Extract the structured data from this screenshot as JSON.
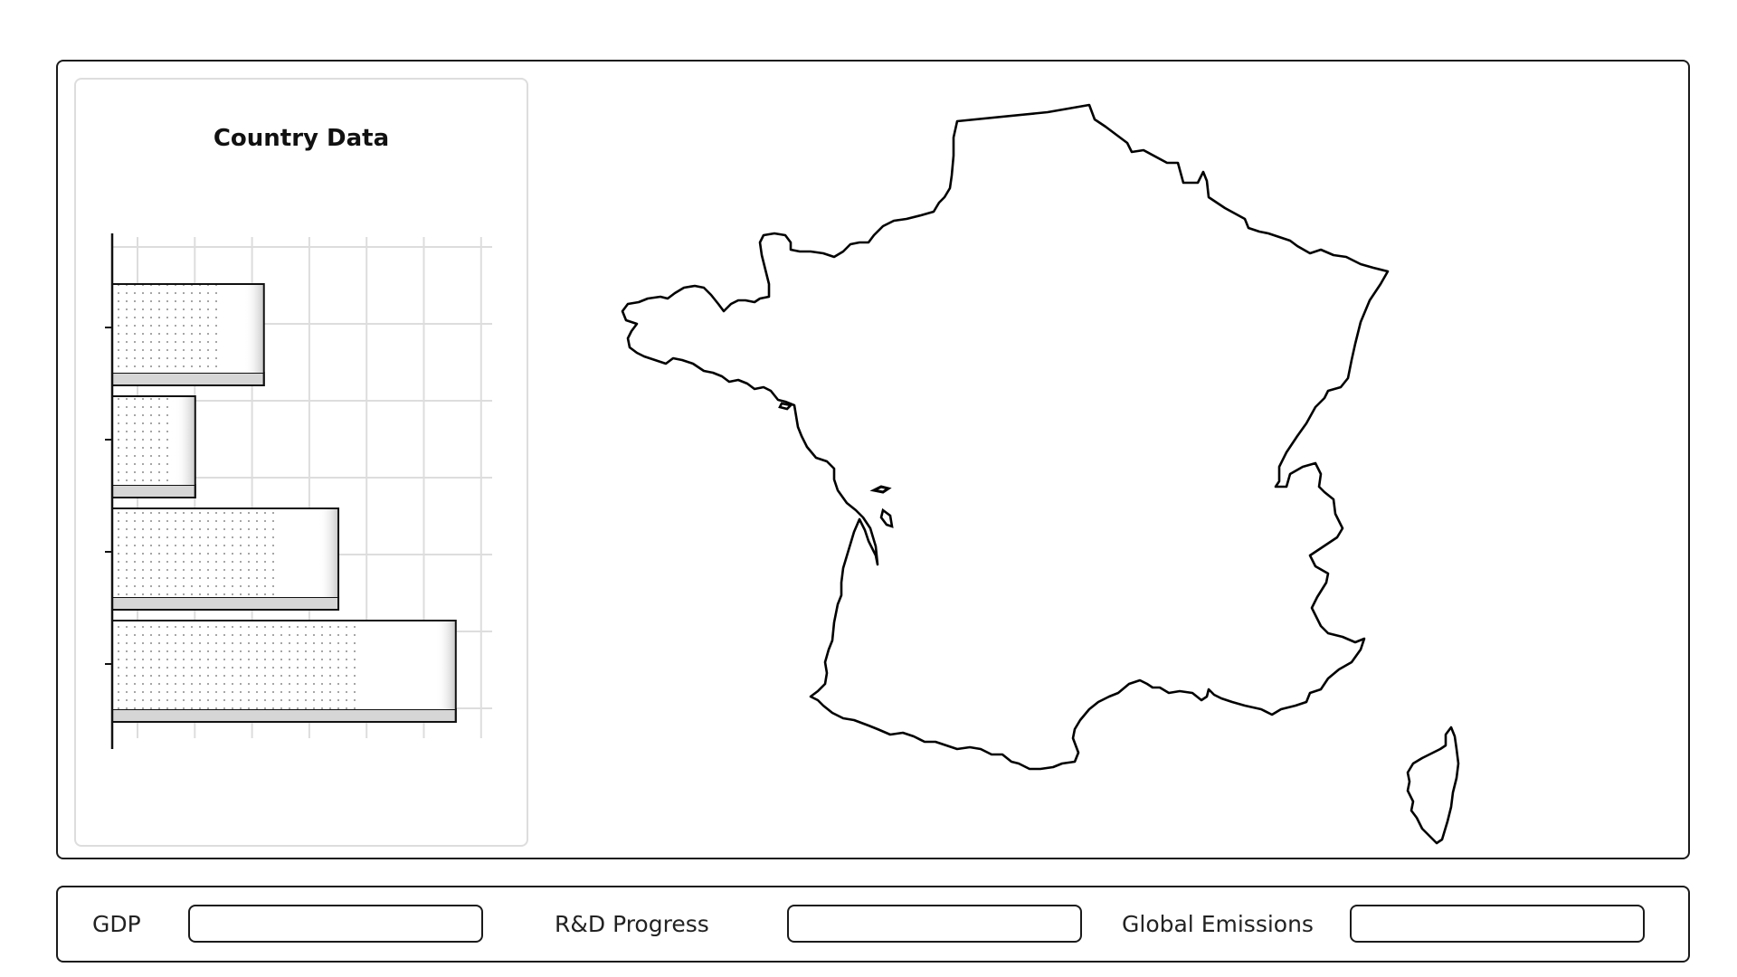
{
  "panel": {
    "card_title": "Country Data"
  },
  "chart_data": {
    "type": "bar",
    "orientation": "horizontal",
    "title": "Country Data",
    "categories": [
      "",
      "",
      "",
      ""
    ],
    "values": [
      2.65,
      1.45,
      3.95,
      6.0
    ],
    "xlim": [
      0,
      6.8
    ],
    "xticks": 7,
    "ylabels_visible": false,
    "xlabel": "",
    "ylabel": "",
    "grid": true,
    "bar_fill": "dotted",
    "colors": {
      "bar_outline": "#111111",
      "bar_face": "#ffffff",
      "bar_shadow": "#d6d6d6",
      "grid": "#dddddd",
      "axis": "#111111",
      "dots": "#666666"
    }
  },
  "map": {
    "region": "France",
    "outline_color": "#000000",
    "fill_color": "#ffffff"
  },
  "controls": {
    "gdp_label": "GDP",
    "gdp_value": "",
    "rd_label": "R&D Progress",
    "rd_value": "",
    "emissions_label": "Global Emissions",
    "emissions_value": ""
  }
}
